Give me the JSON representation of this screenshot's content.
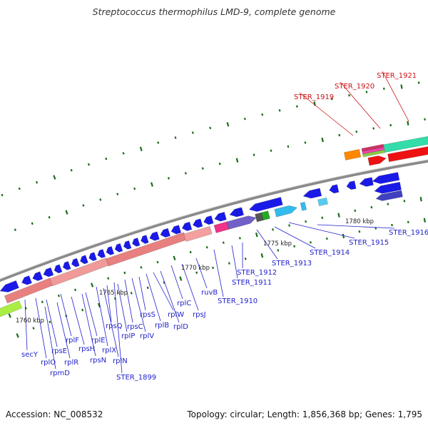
{
  "header": {
    "title": "Streptococcus thermophilus LMD-9, complete genome"
  },
  "footer": {
    "accession": "Accession: NC_008532",
    "summary": "Topology: circular; Length: 1,856,368 bp; Genes: 1,795"
  },
  "colors": {
    "label_blue": "#2222cc",
    "label_red": "#cc1111",
    "backbone": "#8a8a8a",
    "tick": "#1a6b1a",
    "gene_blue": "#1a1ae8",
    "rrna_salmon": "#e88080",
    "gene_red": "#ee1111"
  },
  "scale_labels": [
    {
      "text": "1760 kbp"
    },
    {
      "text": "1765 kbp"
    },
    {
      "text": "1770 kbp"
    },
    {
      "text": "1775 kbp"
    },
    {
      "text": "1780 kbp"
    }
  ],
  "gene_labels": [
    {
      "text": "secY",
      "color": "blue"
    },
    {
      "text": "rplO",
      "color": "blue"
    },
    {
      "text": "rpmD",
      "color": "blue"
    },
    {
      "text": "rpsE",
      "color": "blue"
    },
    {
      "text": "rplR",
      "color": "blue"
    },
    {
      "text": "rplF",
      "color": "blue"
    },
    {
      "text": "rpsH",
      "color": "blue"
    },
    {
      "text": "rpsN",
      "color": "blue"
    },
    {
      "text": "rplE",
      "color": "blue"
    },
    {
      "text": "rplX",
      "color": "blue"
    },
    {
      "text": "rplN",
      "color": "blue"
    },
    {
      "text": "rpsQ",
      "color": "blue"
    },
    {
      "text": "STER_1899",
      "color": "blue"
    },
    {
      "text": "rplP",
      "color": "blue"
    },
    {
      "text": "rpsC",
      "color": "blue"
    },
    {
      "text": "rplV",
      "color": "blue"
    },
    {
      "text": "rpsS",
      "color": "blue"
    },
    {
      "text": "rplB",
      "color": "blue"
    },
    {
      "text": "rplW",
      "color": "blue"
    },
    {
      "text": "rplD",
      "color": "blue"
    },
    {
      "text": "rplC",
      "color": "blue"
    },
    {
      "text": "rpsJ",
      "color": "blue"
    },
    {
      "text": "ruvB",
      "color": "blue"
    },
    {
      "text": "STER_1910",
      "color": "blue"
    },
    {
      "text": "STER_1911",
      "color": "blue"
    },
    {
      "text": "STER_1912",
      "color": "blue"
    },
    {
      "text": "STER_1913",
      "color": "blue"
    },
    {
      "text": "STER_1914",
      "color": "blue"
    },
    {
      "text": "STER_1915",
      "color": "blue"
    },
    {
      "text": "STER_1916",
      "color": "blue"
    },
    {
      "text": "STER_1919",
      "color": "red"
    },
    {
      "text": "STER_1920",
      "color": "red"
    },
    {
      "text": "STER_1921",
      "color": "red"
    }
  ]
}
